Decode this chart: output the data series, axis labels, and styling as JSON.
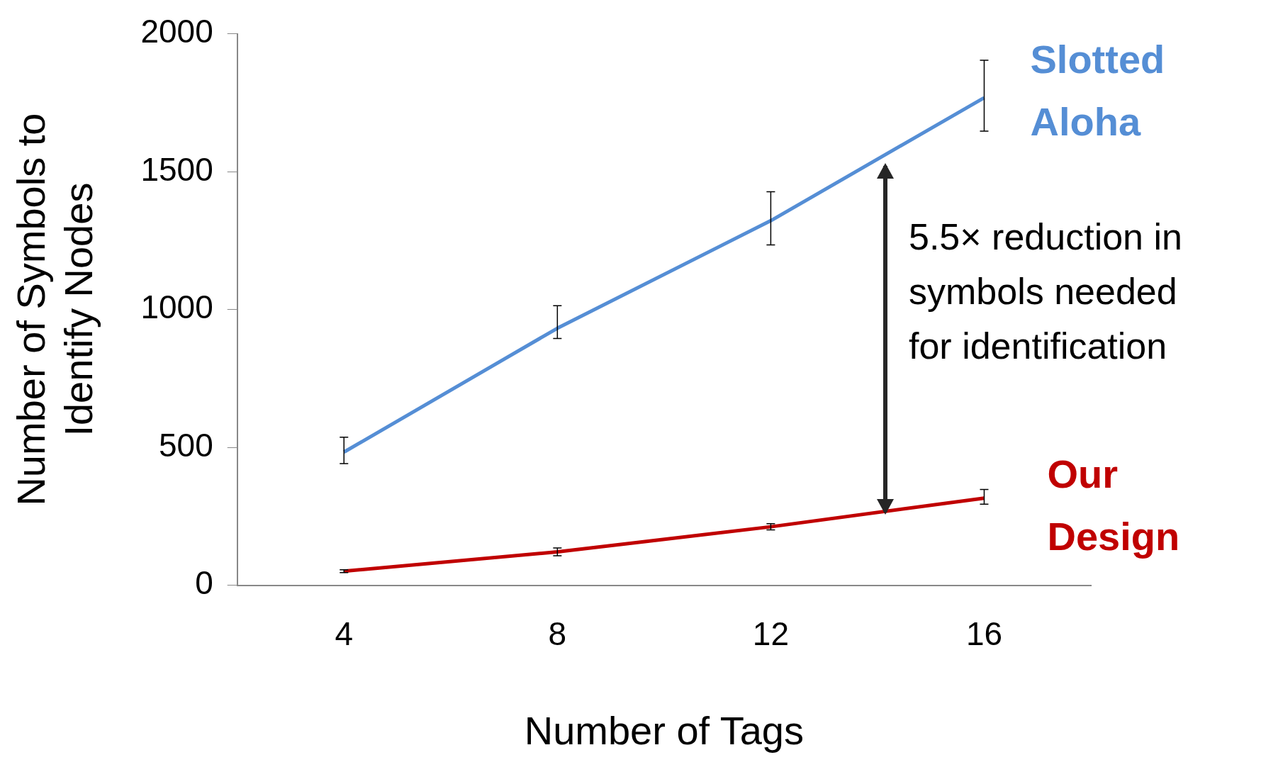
{
  "chart_data": {
    "type": "line",
    "xlabel": "Number of Tags",
    "ylabel": "Number of Symbols to Identify Nodes",
    "categories": [
      "4",
      "8",
      "12",
      "16"
    ],
    "ylim": [
      0,
      2000
    ],
    "yticks": [
      0,
      500,
      1000,
      1500,
      2000
    ],
    "grid": false,
    "legend": false,
    "line_style": "solid",
    "series": [
      {
        "name": "Slotted Aloha",
        "color": "#558ed5",
        "values": [
          483,
          932,
          1322,
          1768
        ],
        "errors": [
          [
            441,
            537
          ],
          [
            895,
            1014
          ],
          [
            1234,
            1427
          ],
          [
            1647,
            1904
          ]
        ]
      },
      {
        "name": "Our Design",
        "color": "#c00000",
        "values": [
          51,
          121,
          212,
          316
        ],
        "errors": [
          [
            46,
            56
          ],
          [
            107,
            135
          ],
          [
            201,
            223
          ],
          [
            294,
            347
          ]
        ]
      }
    ],
    "annotations": [
      "5.5× reduction in symbols needed for identification"
    ]
  }
}
